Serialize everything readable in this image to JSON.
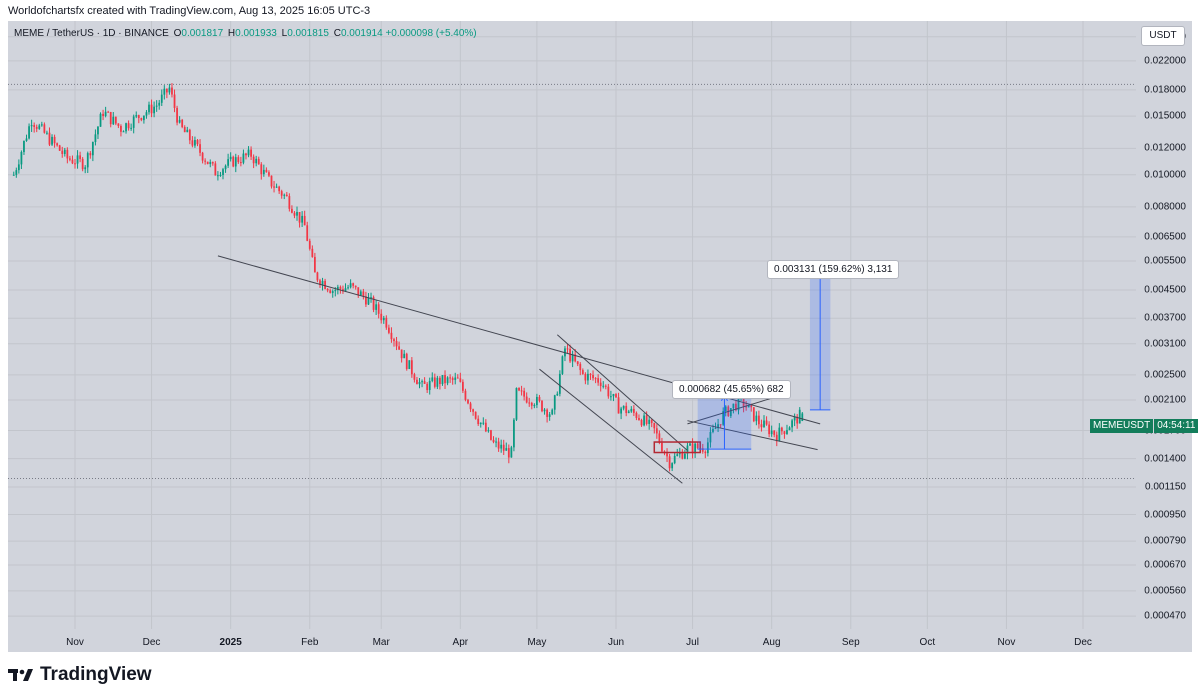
{
  "header": {
    "attribution": "Worldofchartsfx created with TradingView.com, Aug 13, 2025 16:05 UTC-3"
  },
  "legend": {
    "symbol": "MEME / TetherUS · 1D · BINANCE",
    "o_label": "O",
    "o": "0.001817",
    "h_label": "H",
    "h": "0.001933",
    "l_label": "L",
    "l": "0.001815",
    "c_label": "C",
    "c": "0.001914",
    "change": "+0.000098 (+5.40%)"
  },
  "axis": {
    "currency": "USDT",
    "price_ticks": [
      "0.026000",
      "0.022000",
      "0.018000",
      "0.015000",
      "0.012000",
      "0.010000",
      "0.008000",
      "0.006500",
      "0.005500",
      "0.004500",
      "0.003700",
      "0.003100",
      "0.002500",
      "0.002100",
      "0.001700",
      "0.001400",
      "0.001150",
      "0.000950",
      "0.000790",
      "0.000670",
      "0.000560",
      "0.000470"
    ],
    "time_ticks": [
      "Nov",
      "Dec",
      "2025",
      "Feb",
      "Mar",
      "Apr",
      "May",
      "Jun",
      "Jul",
      "Aug",
      "Sep",
      "Oct",
      "Nov",
      "Dec"
    ]
  },
  "current_price": {
    "symbol": "MEMEUSDT",
    "countdown": "04:54:11"
  },
  "annotations": {
    "small_move": "0.000682 (45.65%) 682",
    "big_move": "0.003131 (159.62%) 3,131"
  },
  "footer": {
    "brand": "TradingView"
  },
  "colors": {
    "up": "#089981",
    "down": "#f23645",
    "background": "#d1d4dc",
    "projection": "#2962ff",
    "trendline": "#434651"
  },
  "chart_data": {
    "type": "candlestick",
    "scale": "log",
    "ylim": [
      0.00043,
      0.029
    ],
    "grid": true,
    "legend_position": "top-left",
    "series": [
      {
        "date": "2024-10-08",
        "close": 0.01
      },
      {
        "date": "2024-10-15",
        "close": 0.0147
      },
      {
        "date": "2024-10-22",
        "close": 0.0128
      },
      {
        "date": "2024-10-29",
        "close": 0.0112
      },
      {
        "date": "2024-11-05",
        "close": 0.0108
      },
      {
        "date": "2024-11-12",
        "close": 0.0155
      },
      {
        "date": "2024-11-19",
        "close": 0.0138
      },
      {
        "date": "2024-11-26",
        "close": 0.015
      },
      {
        "date": "2024-12-03",
        "close": 0.0162
      },
      {
        "date": "2024-12-08",
        "close": 0.0182
      },
      {
        "date": "2024-12-12",
        "close": 0.014
      },
      {
        "date": "2024-12-19",
        "close": 0.012
      },
      {
        "date": "2024-12-26",
        "close": 0.0102
      },
      {
        "date": "2025-01-02",
        "close": 0.011
      },
      {
        "date": "2025-01-09",
        "close": 0.0115
      },
      {
        "date": "2025-01-16",
        "close": 0.0096
      },
      {
        "date": "2025-01-23",
        "close": 0.0085
      },
      {
        "date": "2025-01-30",
        "close": 0.007
      },
      {
        "date": "2025-02-03",
        "close": 0.005
      },
      {
        "date": "2025-02-10",
        "close": 0.0045
      },
      {
        "date": "2025-02-17",
        "close": 0.0046
      },
      {
        "date": "2025-02-24",
        "close": 0.0042
      },
      {
        "date": "2025-03-03",
        "close": 0.0036
      },
      {
        "date": "2025-03-10",
        "close": 0.0028
      },
      {
        "date": "2025-03-17",
        "close": 0.0023
      },
      {
        "date": "2025-03-24",
        "close": 0.0024
      },
      {
        "date": "2025-03-31",
        "close": 0.0024
      },
      {
        "date": "2025-04-07",
        "close": 0.0019
      },
      {
        "date": "2025-04-14",
        "close": 0.00155
      },
      {
        "date": "2025-04-21",
        "close": 0.00145
      },
      {
        "date": "2025-04-23",
        "close": 0.0022
      },
      {
        "date": "2025-04-30",
        "close": 0.0021
      },
      {
        "date": "2025-05-07",
        "close": 0.0019
      },
      {
        "date": "2025-05-12",
        "close": 0.003
      },
      {
        "date": "2025-05-19",
        "close": 0.0025
      },
      {
        "date": "2025-05-26",
        "close": 0.0024
      },
      {
        "date": "2025-06-02",
        "close": 0.002
      },
      {
        "date": "2025-06-09",
        "close": 0.0019
      },
      {
        "date": "2025-06-16",
        "close": 0.0017
      },
      {
        "date": "2025-06-22",
        "close": 0.00137
      },
      {
        "date": "2025-06-29",
        "close": 0.0015
      },
      {
        "date": "2025-07-06",
        "close": 0.00152
      },
      {
        "date": "2025-07-13",
        "close": 0.0019
      },
      {
        "date": "2025-07-20",
        "close": 0.0021
      },
      {
        "date": "2025-07-27",
        "close": 0.0018
      },
      {
        "date": "2025-08-03",
        "close": 0.00165
      },
      {
        "date": "2025-08-10",
        "close": 0.00182
      },
      {
        "date": "2025-08-13",
        "close": 0.001914
      }
    ],
    "lines": [
      {
        "name": "descending trendline",
        "from": {
          "date": "2024-12-27",
          "price": 0.0057
        },
        "to": {
          "date": "2025-08-20",
          "price": 0.00178
        }
      },
      {
        "name": "wedge upper",
        "from": {
          "date": "2025-05-09",
          "price": 0.0033
        },
        "to": {
          "date": "2025-06-29",
          "price": 0.00148
        }
      },
      {
        "name": "wedge lower",
        "from": {
          "date": "2025-05-02",
          "price": 0.0026
        },
        "to": {
          "date": "2025-06-27",
          "price": 0.00118
        }
      },
      {
        "name": "flag upper",
        "from": {
          "date": "2025-06-29",
          "price": 0.00178
        },
        "to": {
          "date": "2025-08-03",
          "price": 0.00215
        }
      },
      {
        "name": "flag lower",
        "from": {
          "date": "2025-06-29",
          "price": 0.00182
        },
        "to": {
          "date": "2025-08-19",
          "price": 0.00149
        }
      }
    ],
    "levels": [
      0.0187,
      0.00122
    ],
    "measurements": [
      {
        "from_date": "2025-07-03",
        "to_date": "2025-07-24",
        "low": 0.001495,
        "high": 0.002177
      },
      {
        "from_date": "2025-08-16",
        "to_date": "2025-08-24",
        "low": 0.001962,
        "high": 0.005093
      }
    ],
    "range_box": {
      "from_date": "2025-06-16",
      "to_date": "2025-07-04",
      "low": 0.00146,
      "high": 0.00157
    }
  }
}
